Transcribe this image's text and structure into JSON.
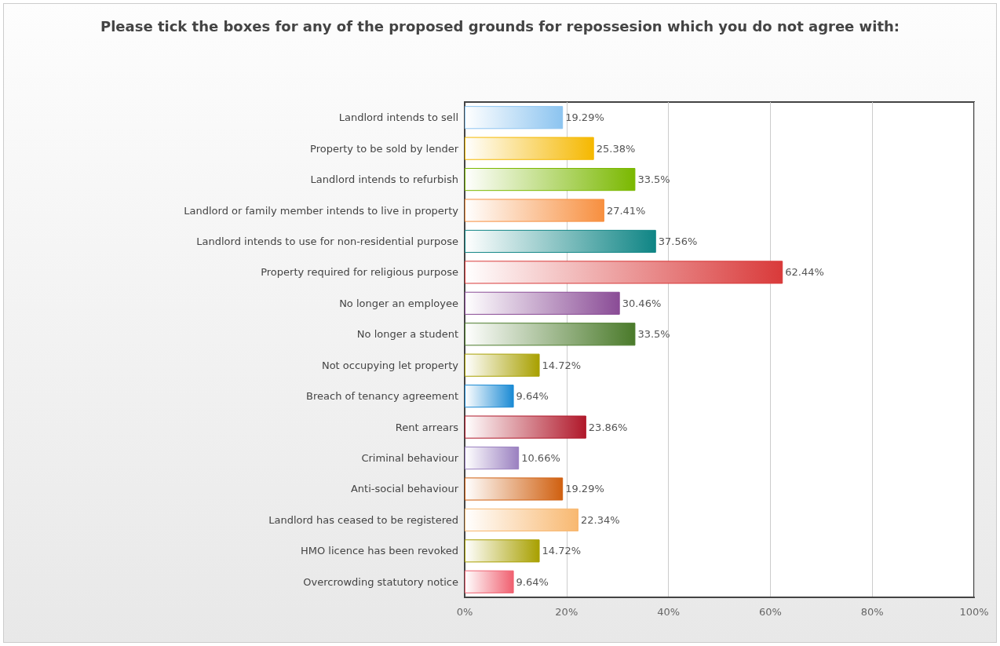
{
  "chart_data": {
    "type": "bar",
    "orientation": "horizontal",
    "title": "Please tick the boxes for any of the proposed grounds for repossesion which you do not agree with:",
    "categories": [
      "Landlord intends to sell",
      "Property to be sold by lender",
      "Landlord intends to refurbish",
      "Landlord or family member intends to live in property",
      "Landlord intends to use for non-residential purpose",
      "Property required for religious purpose",
      "No longer an employee",
      "No longer a student",
      "Not occupying let property",
      "Breach of tenancy agreement",
      "Rent arrears",
      "Criminal behaviour",
      "Anti-social behaviour",
      "Landlord has ceased to be registered",
      "HMO licence has been revoked",
      "Overcrowding statutory notice"
    ],
    "values": [
      19.29,
      25.38,
      33.5,
      27.41,
      37.56,
      62.44,
      30.46,
      33.5,
      14.72,
      9.64,
      23.86,
      10.66,
      19.29,
      22.34,
      14.72,
      9.64
    ],
    "value_labels": [
      "19.29%",
      "25.38%",
      "33.5%",
      "27.41%",
      "37.56%",
      "62.44%",
      "30.46%",
      "33.5%",
      "14.72%",
      "9.64%",
      "23.86%",
      "10.66%",
      "19.29%",
      "22.34%",
      "14.72%",
      "9.64%"
    ],
    "colors": [
      "#8cc4f0",
      "#f5b800",
      "#7ab800",
      "#f78f3f",
      "#0f8585",
      "#d93a3a",
      "#8a4c96",
      "#4a7a2a",
      "#a8a000",
      "#1a8ad4",
      "#b0182a",
      "#9a80c0",
      "#d06010",
      "#f8b870",
      "#a8a000",
      "#f06070"
    ],
    "xlim": [
      0,
      100
    ],
    "xticks": [
      {
        "value": 0,
        "label": "0%"
      },
      {
        "value": 20,
        "label": "20%"
      },
      {
        "value": 40,
        "label": "40%"
      },
      {
        "value": 60,
        "label": "60%"
      },
      {
        "value": 80,
        "label": "80%"
      },
      {
        "value": 100,
        "label": "100%"
      }
    ],
    "grid": "x"
  }
}
